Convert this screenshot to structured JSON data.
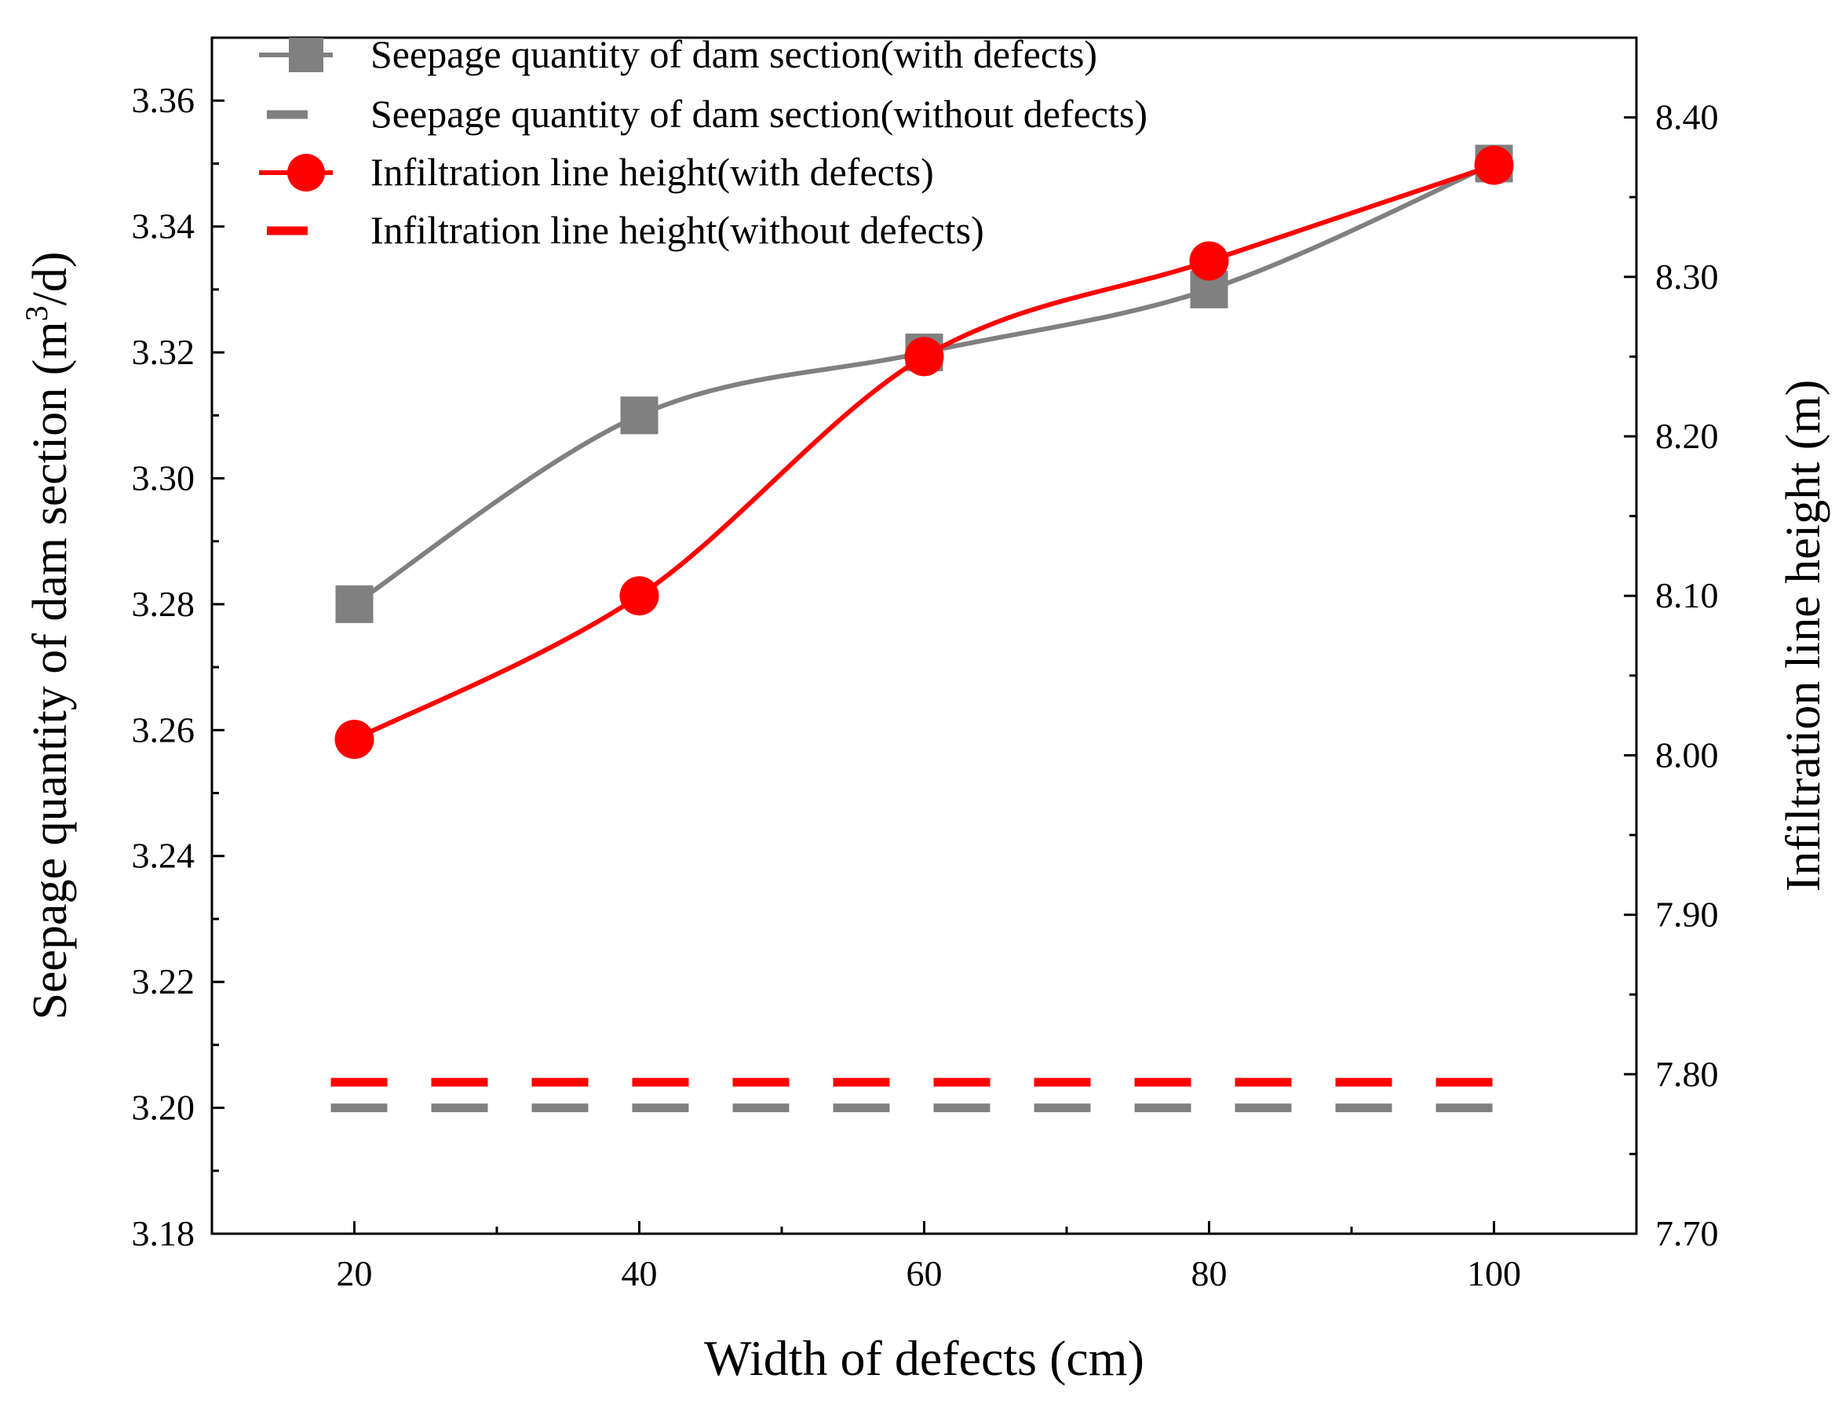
{
  "chart_data": {
    "type": "line",
    "title": "",
    "xlabel": "Width of defects (cm)",
    "ylabel_left": {
      "pre": "Seepage quantity of dam section (m",
      "sup": "3",
      "post": "/d)"
    },
    "ylabel_right": "Infiltration line height (m)",
    "xlim": [
      10,
      110
    ],
    "ylim_left": [
      3.18,
      3.37
    ],
    "ylim_right": [
      7.7,
      8.45
    ],
    "x_ticks": [
      20,
      40,
      60,
      80,
      100
    ],
    "x_tick_labels": [
      "20",
      "40",
      "60",
      "80",
      "100"
    ],
    "left_ticks": [
      3.18,
      3.2,
      3.22,
      3.24,
      3.26,
      3.28,
      3.3,
      3.32,
      3.34,
      3.36
    ],
    "left_tick_labels": [
      "3.18",
      "3.20",
      "3.22",
      "3.24",
      "3.26",
      "3.28",
      "3.30",
      "3.32",
      "3.34",
      "3.36"
    ],
    "right_ticks": [
      7.7,
      7.8,
      7.9,
      8.0,
      8.1,
      8.2,
      8.3,
      8.4
    ],
    "right_tick_labels": [
      "7.70",
      "7.80",
      "7.90",
      "8.00",
      "8.10",
      "8.20",
      "8.30",
      "8.40"
    ],
    "grid": false,
    "legend_position": "top-left",
    "series": [
      {
        "name": "Seepage quantity of dam section(with defects)",
        "axis": "left",
        "color": "#808080",
        "marker": "square",
        "style": "solid",
        "x": [
          20,
          40,
          60,
          80,
          100
        ],
        "values": [
          3.28,
          3.31,
          3.32,
          3.33,
          3.35
        ]
      },
      {
        "name": "Seepage quantity of dam section(without defects)",
        "axis": "left",
        "color": "#808080",
        "marker": "none",
        "style": "dashed",
        "x": [
          20,
          100
        ],
        "values": [
          3.2,
          3.2
        ]
      },
      {
        "name": "Infiltration line height(with defects)",
        "axis": "right",
        "color": "#ff0000",
        "marker": "circle",
        "style": "solid",
        "x": [
          20,
          40,
          60,
          80,
          100
        ],
        "values": [
          8.01,
          8.1,
          8.25,
          8.31,
          8.37
        ]
      },
      {
        "name": "Infiltration line height(without defects)",
        "axis": "right",
        "color": "#ff0000",
        "marker": "none",
        "style": "dashed",
        "x": [
          20,
          100
        ],
        "values": [
          7.795,
          7.795
        ]
      }
    ]
  }
}
